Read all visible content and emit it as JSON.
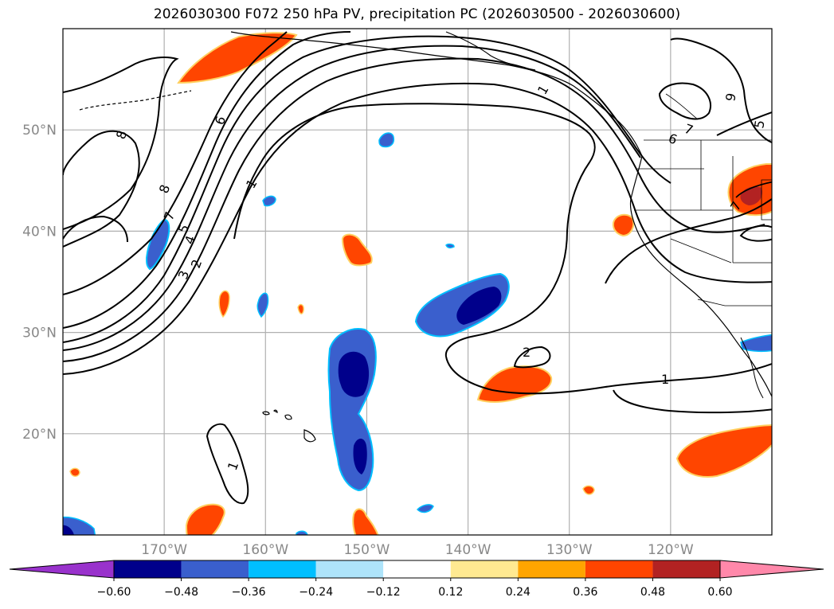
{
  "title": "2026030300 F072 250 hPa PV, precipitation PC (2026030500 - 2026030600)",
  "map": {
    "lon_range": [
      -180,
      -110
    ],
    "lat_range": [
      10,
      60
    ],
    "lat_ticks": [
      {
        "value": 50,
        "label": "50°N"
      },
      {
        "value": 40,
        "label": "40°N"
      },
      {
        "value": 30,
        "label": "30°N"
      },
      {
        "value": 20,
        "label": "20°N"
      }
    ],
    "lon_ticks": [
      {
        "value": -170,
        "label": "170°W"
      },
      {
        "value": -160,
        "label": "160°W"
      },
      {
        "value": -150,
        "label": "150°W"
      },
      {
        "value": -140,
        "label": "140°W"
      },
      {
        "value": -130,
        "label": "130°W"
      },
      {
        "value": -120,
        "label": "120°W"
      }
    ],
    "pv_contour_labels": [
      "1",
      "2",
      "3",
      "4",
      "5",
      "6",
      "7",
      "8",
      "9",
      "1",
      "1",
      "2",
      "5",
      "6",
      "7",
      "8",
      "1",
      "7"
    ]
  },
  "colorbar": {
    "boundaries": [
      -0.6,
      -0.48,
      -0.36,
      -0.24,
      -0.12,
      0.12,
      0.24,
      0.36,
      0.48,
      0.6
    ],
    "tick_labels": [
      "−0.60",
      "−0.48",
      "−0.36",
      "−0.24",
      "−0.12",
      "0.12",
      "0.24",
      "0.36",
      "0.48",
      "0.60"
    ],
    "colors": [
      "#9932cc",
      "#00008b",
      "#3a5fcd",
      "#00bfff",
      "#aee4fa",
      "#ffffff",
      "#ffe991",
      "#ffa500",
      "#ff4500",
      "#b22222",
      "#ff88aa"
    ]
  }
}
